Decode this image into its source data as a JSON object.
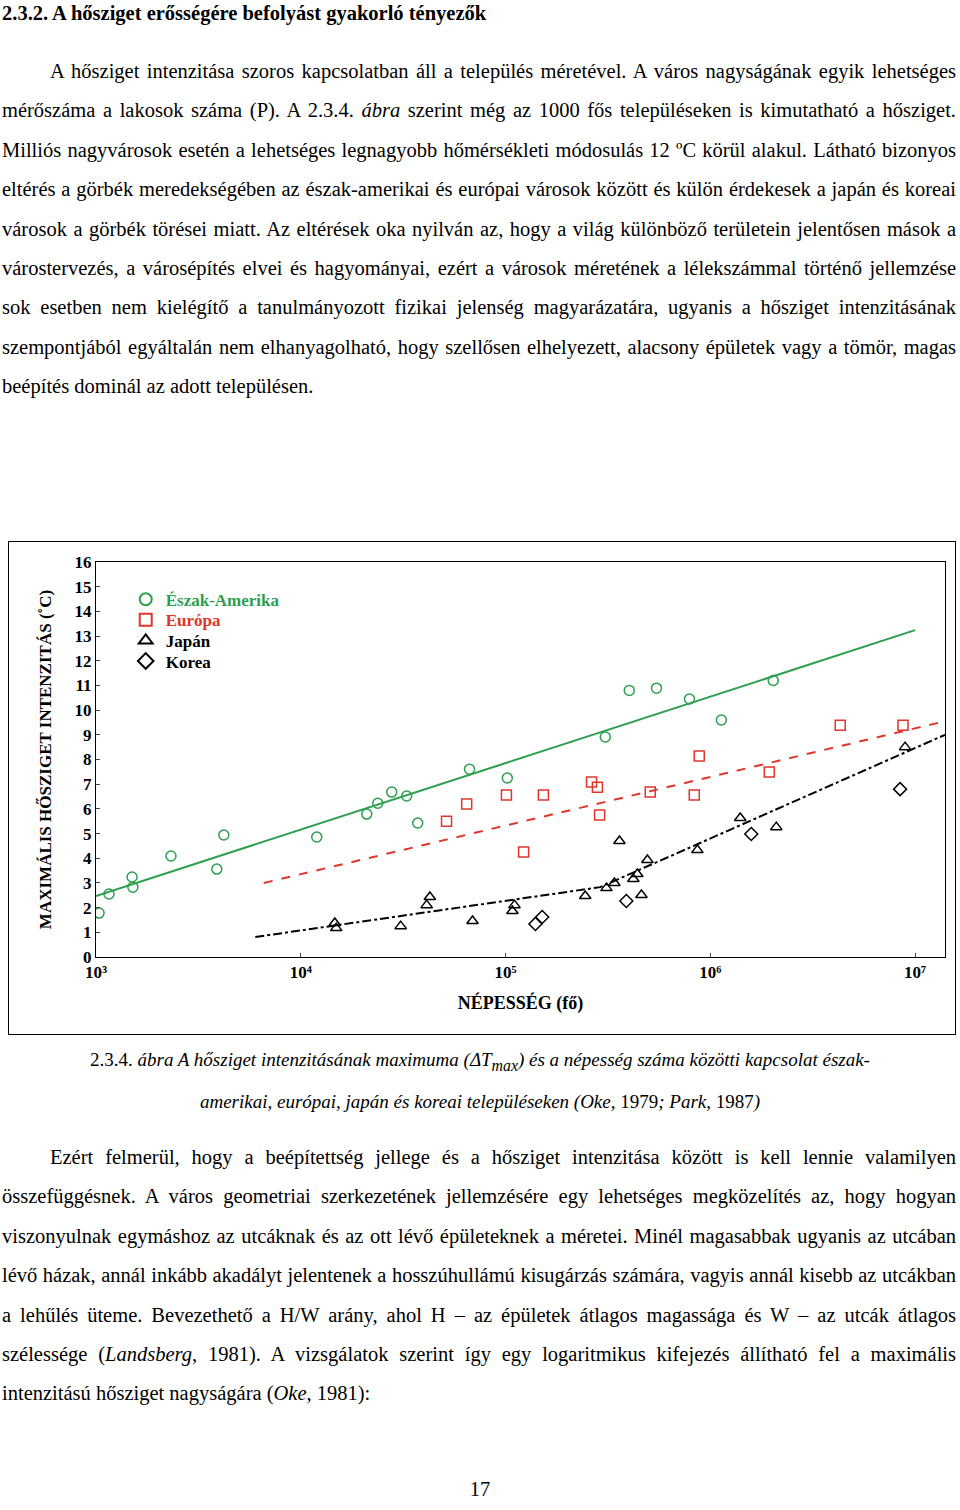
{
  "heading": "2.3.2. A hősziget erősségére befolyást gyakorló tényezők",
  "paragraphs_before": [
    [
      "A hősziget intenzitása szoros kapcsolatban áll a település méretével. A város nagyságának egyik lehetséges mérőszáma a lakosok száma (P). A 2.3.4. ",
      {
        "text": "ábra",
        "style": "italic"
      },
      " szerint még az 1000 fős településeken is kimutatható a hősziget. Milliós nagyvárosok esetén a lehetséges legnagyobb hőmérsékleti módosulás 12 ºC körül alakul. Látható bizonyos eltérés a görbék meredekségében az észak-amerikai és európai városok között és külön érdekesek a japán és koreai városok a görbék törései miatt. Az eltérések oka nyilván az, hogy a világ különböző területein jelentősen mások a várostervezés, a városépítés elvei és hagyományai, ezért a városok méretének a lélekszámmal történő jellemzése sok esetben nem kielégítő a tanulmányozott fizikai jelenség magyarázatára, ugyanis a hősziget intenzitásának szempontjából egyáltalán nem elhanyagolható, hogy szellősen elhelyezett, alacsony épületek vagy a tömör, magas beépítés dominál az adott településen."
    ]
  ],
  "chart_data": {
    "type": "scatter",
    "x_label": "NÉPESSÉG (fő)",
    "y_label": "MAXIMÁLIS HŐSZIGET INTENZITÁS (˚C)",
    "log": "x",
    "grid": false,
    "legend": "upper left",
    "xlim": [
      1000,
      14000000
    ],
    "xticks": [
      {
        "value": 1000,
        "label": "10³"
      },
      {
        "value": 10000,
        "label": "10⁴"
      },
      {
        "value": 100000,
        "label": "10⁵"
      },
      {
        "value": 1000000,
        "label": "10⁶"
      },
      {
        "value": 10000000,
        "label": "10⁷"
      }
    ],
    "ylim": [
      0,
      16
    ],
    "yticks": [
      0,
      1,
      2,
      3,
      4,
      5,
      6,
      7,
      8,
      9,
      10,
      11,
      12,
      13,
      14,
      15,
      16
    ],
    "series": [
      {
        "name": "Észak-Amerika",
        "color": "#2e9e4f",
        "marker": "circle",
        "x": [
          1035,
          1157,
          1500,
          1514,
          2323,
          3890,
          4210,
          11970,
          21000,
          23770,
          27800,
          32900,
          37240,
          66700,
          102000,
          307000,
          402000,
          546000,
          791000,
          1132000,
          2030000
        ],
        "values": [
          1.78,
          2.55,
          3.24,
          2.83,
          4.09,
          3.56,
          4.94,
          4.86,
          5.79,
          6.23,
          6.68,
          6.52,
          5.43,
          7.61,
          7.25,
          8.91,
          10.8,
          10.89,
          10.45,
          9.6,
          11.2
        ]
      },
      {
        "name": "Európa",
        "color": "#e0362c",
        "marker": "square",
        "x": [
          51500,
          64600,
          101000,
          122500,
          153000,
          263000,
          281000,
          288000,
          509000,
          883000,
          835000,
          1941000,
          4310000,
          8730000
        ],
        "values": [
          5.5,
          6.2,
          6.56,
          4.25,
          6.56,
          7.09,
          6.88,
          5.75,
          6.68,
          8.14,
          6.56,
          7.49,
          9.39,
          9.39
        ]
      },
      {
        "name": "Japán",
        "color": "#000000",
        "marker": "triangle-up",
        "x": [
          14660,
          14900,
          30760,
          41200,
          42700,
          69000,
          108000,
          110600,
          245000,
          311000,
          340000,
          360000,
          421000,
          440000,
          461000,
          493000,
          865000,
          1400000,
          2100000,
          8940000
        ],
        "values": [
          1.38,
          1.17,
          1.25,
          2.1,
          2.43,
          1.46,
          1.86,
          2.1,
          2.47,
          2.79,
          3.0,
          4.7,
          3.16,
          3.36,
          2.51,
          3.93,
          4.33,
          5.63,
          5.26,
          8.5
        ]
      },
      {
        "name": "Korea",
        "color": "#000000",
        "marker": "diamond",
        "x": [
          140000,
          151000,
          389000,
          1585000,
          8450000
        ],
        "values": [
          1.34,
          1.62,
          2.27,
          4.98,
          6.8
        ]
      },
      {
        "type": "line",
        "color": "#2e9e4f",
        "line_style": "solid",
        "x": [
          1000,
          10000000
        ],
        "values": [
          2.47,
          13.24
        ]
      },
      {
        "type": "line",
        "color": "#e0362c",
        "line_style": "dash",
        "x": [
          6600,
          14000000
        ],
        "values": [
          3.0,
          9.55
        ]
      },
      {
        "type": "line",
        "color": "#000000",
        "line_style": "dashdot",
        "x": [
          6000,
          290000,
          14000000
        ],
        "values": [
          0.81,
          2.83,
          9.0
        ]
      }
    ]
  },
  "caption": [
    "2.3.4. ",
    {
      "text": "ábra A hősziget intenzitásának maximuma (",
      "style": "italic"
    },
    {
      "text": "ΔT",
      "style": "italic"
    },
    {
      "text": "max",
      "style": "italic-sub"
    },
    {
      "text": ") és a népesség száma közötti kapcsolat észak-amerikai, európai, japán és koreai településeken (Oke, ",
      "style": "italic"
    },
    "1979",
    {
      "text": "; Park, ",
      "style": "italic"
    },
    "1987",
    {
      "text": ")",
      "style": "italic"
    }
  ],
  "paragraphs_after": [
    [
      "Ezért felmerül, hogy a beépítettség jellege és a hősziget intenzitása között is kell lennie valamilyen összefüggésnek. A város geometriai szerkezetének jellemzésére egy lehetséges megközelítés az, hogy hogyan viszonyulnak egymáshoz az utcáknak és az ott lévő épületeknek a méretei. Minél magasabbak ugyanis az utcában lévő házak, annál inkább akadályt jelentenek a hosszúhullámú kisugárzás számára, vagyis annál kisebb az utcákban a lehűlés üteme. Bevezethető a H/W arány, ahol H – az épületek átlagos magassága és W – az utcák átlagos szélessége (",
      {
        "text": "Landsberg",
        "style": "italic"
      },
      ", 1981). A vizsgálatok szerint így egy logaritmikus kifejezés állítható fel a maximális intenzitású hősziget nagyságára (",
      {
        "text": "Oke",
        "style": "italic"
      },
      ", 1981):"
    ]
  ],
  "page_number": "17"
}
